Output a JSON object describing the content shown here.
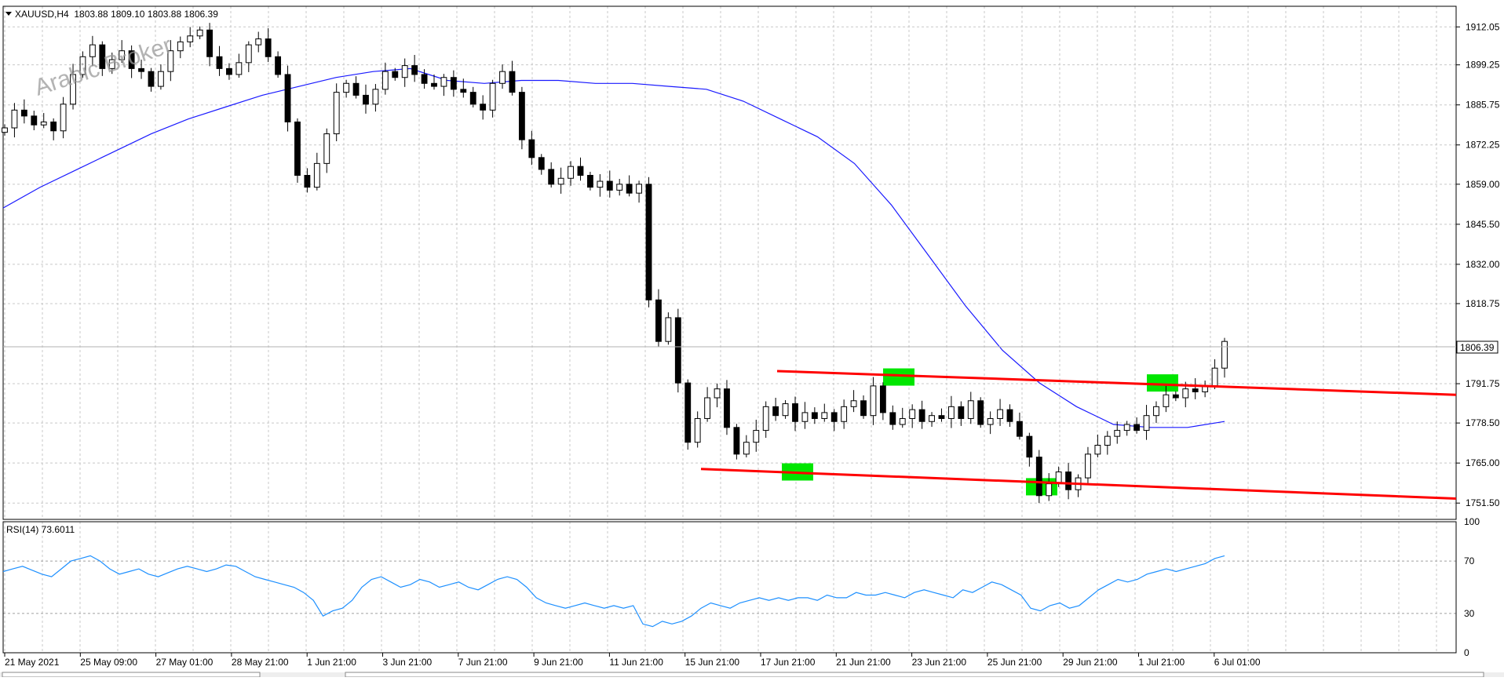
{
  "main_pane": {
    "header": "XAUUSD,H4  1803.88 1809.10 1803.88 1806.39",
    "watermark": "Arabic Broker",
    "price_ticks": [
      "1912.05",
      "1899.25",
      "1885.75",
      "1872.25",
      "1859.00",
      "1845.50",
      "1832.00",
      "1818.75",
      "1806.39",
      "1791.75",
      "1778.50",
      "1765.00",
      "1751.50"
    ],
    "current_price_label": "1806.39"
  },
  "rsi_pane": {
    "header": "RSI(14) 73.6011",
    "ticks": [
      "100",
      "70",
      "30",
      "0"
    ]
  },
  "time_labels": [
    "21 May 2021",
    "25 May 09:00",
    "27 May 01:00",
    "28 May 21:00",
    "1 Jun 21:00",
    "3 Jun 21:00",
    "7 Jun 21:00",
    "9 Jun 21:00",
    "11 Jun 21:00",
    "15 Jun 21:00",
    "17 Jun 21:00",
    "21 Jun 21:00",
    "23 Jun 21:00",
    "25 Jun 21:00",
    "29 Jun 21:00",
    "1 Jul 21:00",
    "6 Jul 01:00"
  ],
  "colors": {
    "background": "#ffffff",
    "grid": "#c8c8c8",
    "candle": "#000000",
    "moving_average": "#1a1aff",
    "channel": "#ff0000",
    "highlight": "#00e600",
    "rsi_line": "#1e90ff"
  },
  "chart_data": [
    {
      "type": "candlestick",
      "symbol": "XAUUSD",
      "timeframe": "H4",
      "last_ohlc": {
        "open": 1803.88,
        "high": 1809.1,
        "low": 1803.88,
        "close": 1806.39
      },
      "ylim": [
        1746,
        1919
      ],
      "x": [
        "21 May 2021",
        "25 May 09:00",
        "27 May 01:00",
        "28 May 21:00",
        "1 Jun 21:00",
        "3 Jun 21:00",
        "7 Jun 21:00",
        "9 Jun 21:00",
        "11 Jun 21:00",
        "15 Jun 21:00",
        "17 Jun 21:00",
        "21 Jun 21:00",
        "23 Jun 21:00",
        "25 Jun 21:00",
        "29 Jun 21:00",
        "1 Jul 21:00",
        "6 Jul 01:00"
      ],
      "close_path": [
        1878,
        1884,
        1882,
        1879,
        1880,
        1877,
        1886,
        1896,
        1902,
        1906,
        1898,
        1901,
        1904,
        1898,
        1897,
        1892,
        1897,
        1904,
        1907,
        1909,
        1911,
        1902,
        1898,
        1896,
        1900,
        1906,
        1908,
        1902,
        1896,
        1880,
        1862,
        1858,
        1866,
        1876,
        1890,
        1893,
        1889,
        1886,
        1891,
        1897,
        1895,
        1899,
        1896,
        1893,
        1892,
        1895,
        1891,
        1890,
        1886,
        1884,
        1893,
        1897,
        1890,
        1874,
        1868,
        1864,
        1859,
        1861,
        1865,
        1862,
        1858,
        1860,
        1857,
        1859,
        1856,
        1859,
        1820,
        1806,
        1814,
        1792,
        1772,
        1780,
        1787,
        1790,
        1777,
        1768,
        1772,
        1776,
        1784,
        1781,
        1785,
        1779,
        1782,
        1780,
        1782,
        1779,
        1784,
        1786,
        1781,
        1791,
        1782,
        1778,
        1780,
        1783,
        1779,
        1781,
        1780,
        1784,
        1780,
        1786,
        1778,
        1780,
        1783,
        1779,
        1774,
        1767,
        1754,
        1758,
        1762,
        1756,
        1760,
        1768,
        1771,
        1774,
        1776,
        1778,
        1776,
        1781,
        1784,
        1788,
        1787,
        1790,
        1789,
        1791,
        1797,
        1806
      ],
      "moving_average": [
        1851,
        1858,
        1864,
        1870,
        1876,
        1881,
        1885,
        1889,
        1892,
        1895,
        1897,
        1898,
        1894,
        1893,
        1894,
        1894,
        1893,
        1893,
        1892,
        1891,
        1887,
        1881,
        1875,
        1866,
        1852,
        1835,
        1818,
        1803,
        1792,
        1784,
        1778,
        1777,
        1777,
        1779
      ],
      "channel_upper": [
        [
          1796,
          "17 Jun"
        ],
        [
          1788,
          "6 Jul"
        ]
      ],
      "channel_lower": [
        [
          1763,
          "16 Jun"
        ],
        [
          1753,
          "6 Jul"
        ]
      ],
      "highlighted_touches": [
        {
          "x": "18 Jun",
          "price": 1762
        },
        {
          "x": "22 Jun",
          "price": 1794
        },
        {
          "x": "28 Jun",
          "price": 1757
        },
        {
          "x": "2 Jul",
          "price": 1792
        }
      ]
    },
    {
      "type": "line",
      "name": "RSI(14)",
      "last_value": 73.6011,
      "ylim": [
        0,
        100
      ],
      "levels": [
        70,
        30
      ],
      "values": [
        62,
        64,
        66,
        63,
        60,
        58,
        64,
        70,
        72,
        74,
        70,
        64,
        60,
        62,
        64,
        60,
        58,
        61,
        64,
        66,
        64,
        62,
        64,
        67,
        66,
        62,
        58,
        56,
        54,
        52,
        50,
        46,
        40,
        28,
        32,
        34,
        40,
        50,
        56,
        58,
        54,
        50,
        52,
        56,
        54,
        50,
        52,
        54,
        50,
        48,
        52,
        56,
        58,
        56,
        50,
        42,
        38,
        36,
        34,
        36,
        38,
        36,
        34,
        36,
        34,
        36,
        22,
        20,
        24,
        22,
        24,
        28,
        34,
        38,
        36,
        34,
        38,
        40,
        42,
        40,
        42,
        40,
        42,
        42,
        40,
        44,
        42,
        42,
        46,
        44,
        44,
        46,
        44,
        42,
        46,
        48,
        46,
        44,
        42,
        48,
        46,
        50,
        54,
        52,
        48,
        44,
        34,
        32,
        36,
        38,
        34,
        36,
        42,
        48,
        52,
        56,
        54,
        56,
        60,
        62,
        64,
        62,
        64,
        66,
        68,
        72,
        74
      ]
    }
  ]
}
